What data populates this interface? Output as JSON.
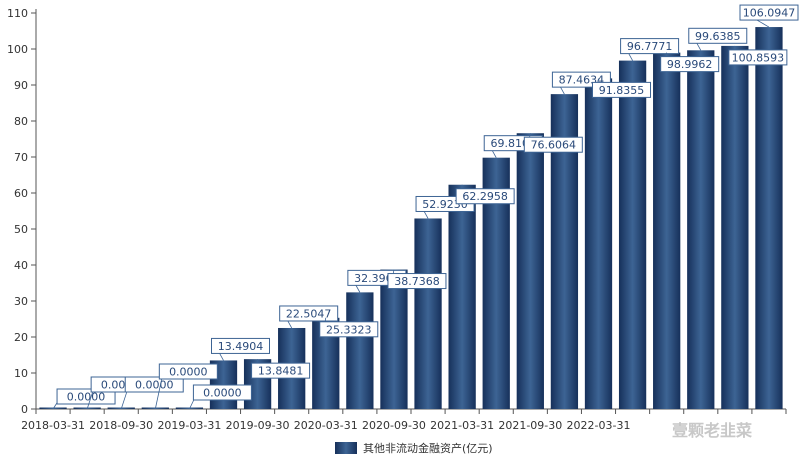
{
  "chart_data": {
    "type": "bar",
    "categories": [
      "2018-03-31",
      "2018-06-30",
      "2018-09-30",
      "2018-12-31",
      "2019-03-31",
      "2019-06-30",
      "2019-09-30",
      "2019-12-31",
      "2020-03-31",
      "2020-06-30",
      "2020-09-30",
      "2020-12-31",
      "2021-03-31",
      "2021-06-30",
      "2021-09-30",
      "2021-12-31",
      "2022-03-31",
      "2022-06-30",
      "2022-09-30",
      "2022-12-31",
      "2023-03-31",
      "2023-06-30"
    ],
    "x_tick_labels": [
      "2018-03-31",
      "2018-09-30",
      "2019-03-31",
      "2019-09-30",
      "2020-03-31",
      "2020-09-30",
      "2021-03-31",
      "2021-09-30",
      "2022-03-31"
    ],
    "series": [
      {
        "name": "其他非流动金融资产(亿元)",
        "values": [
          0,
          0,
          0,
          0,
          0,
          13.4904,
          13.8481,
          22.5047,
          25.3323,
          32.3967,
          38.7368,
          52.923,
          62.2958,
          69.81,
          76.6064,
          87.4634,
          91.8355,
          96.7771,
          98.9962,
          99.6385,
          100.8593,
          106.0947
        ]
      }
    ],
    "data_labels": [
      "0.0000",
      "0.0000",
      "0.0000",
      "0.0000",
      "0.0000",
      "13.4904",
      "13.8481",
      "22.5047",
      "25.3323",
      "32.3967",
      "38.7368",
      "52.9230",
      "62.2958",
      "69.8100",
      "76.6064",
      "87.4634",
      "91.8355",
      "96.7771",
      "98.9962",
      "99.6385",
      "100.8593",
      "106.0947"
    ],
    "y_ticks": [
      "0",
      "10",
      "20",
      "30",
      "40",
      "50",
      "60",
      "70",
      "80",
      "90",
      "100",
      "110"
    ],
    "ylim": [
      0,
      110
    ],
    "grid": false,
    "legend_position": "bottom-center",
    "colors": {
      "bar_dark": "#16305a",
      "bar_light": "#3d6494",
      "label_border": "#3d6494",
      "axis": "#555555"
    }
  },
  "watermark": "壹颗老韭菜"
}
